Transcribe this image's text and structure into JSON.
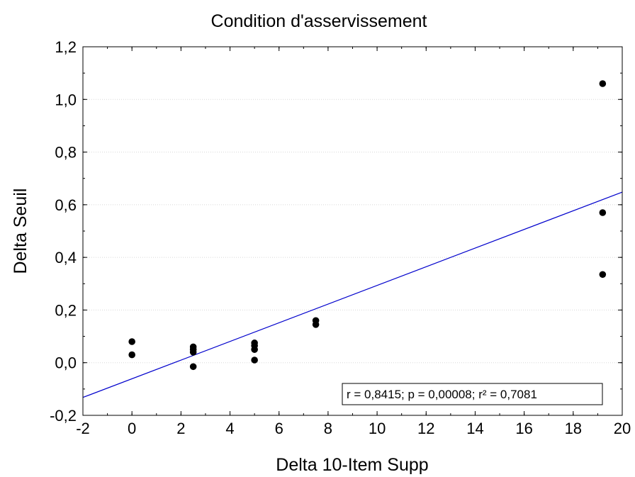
{
  "chart_data": {
    "type": "scatter",
    "title": "Condition d'asservissement",
    "xlabel": "Delta 10-Item Supp",
    "ylabel": "Delta Seuil",
    "xlim": [
      -2,
      20
    ],
    "ylim": [
      -0.2,
      1.2
    ],
    "x_ticks": [
      "-2",
      "0",
      "2",
      "4",
      "6",
      "8",
      "10",
      "12",
      "14",
      "16",
      "18",
      "20"
    ],
    "y_ticks": [
      "-0,2",
      "0,0",
      "0,2",
      "0,4",
      "0,6",
      "0,8",
      "1,0",
      "1,2"
    ],
    "grid": true,
    "points": [
      {
        "x": 0,
        "y": 0.08
      },
      {
        "x": 0,
        "y": 0.03
      },
      {
        "x": 2.5,
        "y": 0.06
      },
      {
        "x": 2.5,
        "y": 0.05
      },
      {
        "x": 2.5,
        "y": 0.04
      },
      {
        "x": 2.5,
        "y": -0.015
      },
      {
        "x": 5,
        "y": 0.075
      },
      {
        "x": 5,
        "y": 0.065
      },
      {
        "x": 5,
        "y": 0.05
      },
      {
        "x": 5,
        "y": 0.01
      },
      {
        "x": 7.5,
        "y": 0.16
      },
      {
        "x": 7.5,
        "y": 0.145
      },
      {
        "x": 19.2,
        "y": 1.06
      },
      {
        "x": 19.2,
        "y": 0.57
      },
      {
        "x": 19.2,
        "y": 0.335
      }
    ],
    "fit_line": {
      "color": "#0000cc",
      "x": [
        -2,
        20
      ],
      "y": [
        -0.132,
        0.648
      ]
    },
    "annotation": "r = 0,8415; p = 0,00008; r² = 0,7081",
    "point_color": "#000000"
  }
}
